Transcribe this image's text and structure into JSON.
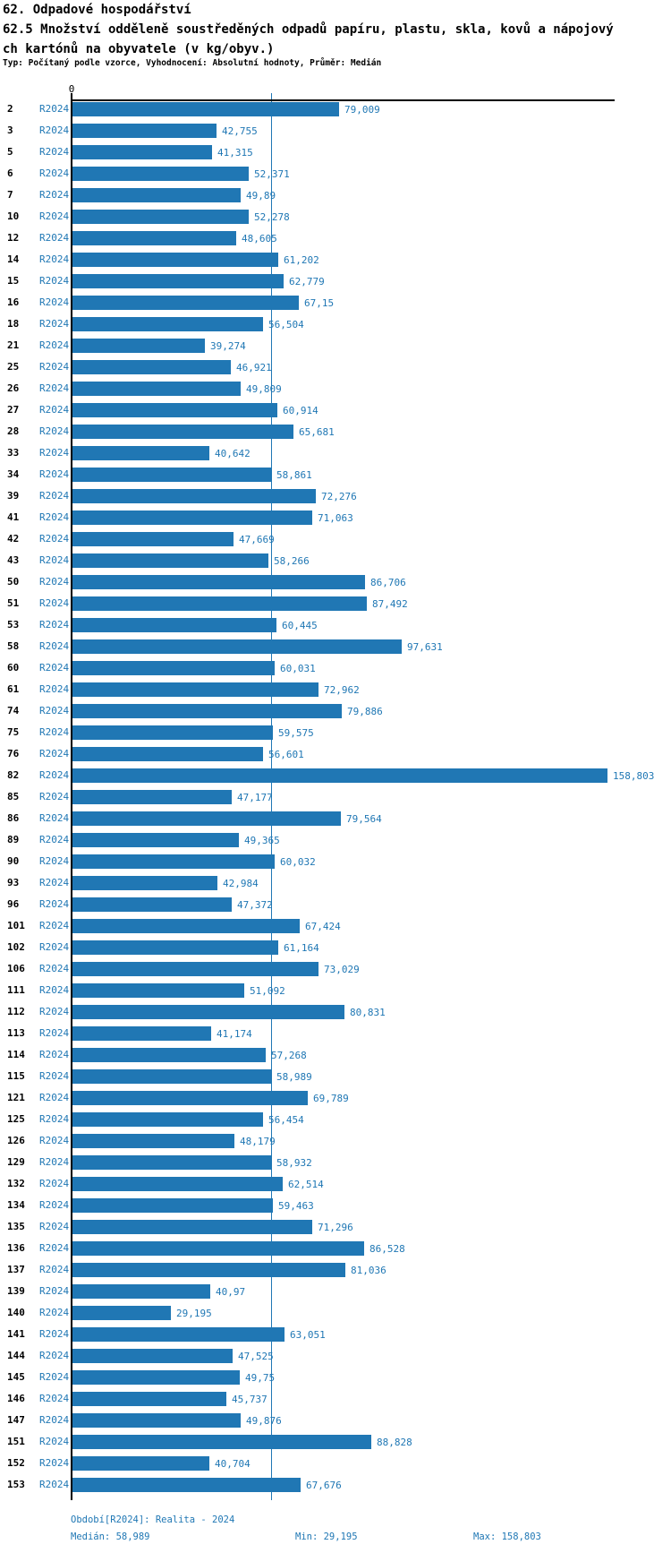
{
  "header": {
    "title": "62. Odpadové hospodářství",
    "subtitle_line1": "62.5 Množství odděleně soustředěných odpadů papíru, plastu, skla, kovů a nápojový",
    "subtitle_line2": "ch kartónů na obyvatele (v kg/obyv.)",
    "meta": "Typ: Počítaný podle vzorce, Vyhodnocení: Absolutní hodnoty, Průměr: Medián"
  },
  "chart_data": {
    "type": "bar",
    "orientation": "horizontal",
    "title": "62.5 Množství odděleně soustředěných odpadů papíru, plastu, skla, kovů a nápojových kartónů na obyvatele (v kg/obyv.)",
    "axis_zero_label": "0",
    "series_label": "R2024",
    "xlim": [
      0,
      158.803
    ],
    "grid": false,
    "median_value": 58.989,
    "bar_color": "#2077b4",
    "text_color": "#1f77b4",
    "category_color": "#000000",
    "categories": [
      "2",
      "3",
      "5",
      "6",
      "7",
      "10",
      "12",
      "14",
      "15",
      "16",
      "18",
      "21",
      "25",
      "26",
      "27",
      "28",
      "33",
      "34",
      "39",
      "41",
      "42",
      "43",
      "50",
      "51",
      "53",
      "58",
      "60",
      "61",
      "74",
      "75",
      "76",
      "82",
      "85",
      "86",
      "89",
      "90",
      "93",
      "96",
      "101",
      "102",
      "106",
      "111",
      "112",
      "113",
      "114",
      "115",
      "121",
      "125",
      "126",
      "129",
      "132",
      "134",
      "135",
      "136",
      "137",
      "139",
      "140",
      "141",
      "144",
      "145",
      "146",
      "147",
      "151",
      "152",
      "153"
    ],
    "values": [
      79.009,
      42.755,
      41.315,
      52.371,
      49.89,
      52.278,
      48.605,
      61.202,
      62.779,
      67.15,
      56.504,
      39.274,
      46.921,
      49.809,
      60.914,
      65.681,
      40.642,
      58.861,
      72.276,
      71.063,
      47.669,
      58.266,
      86.706,
      87.492,
      60.445,
      97.631,
      60.031,
      72.962,
      79.886,
      59.575,
      56.601,
      158.803,
      47.177,
      79.564,
      49.365,
      60.032,
      42.984,
      47.372,
      67.424,
      61.164,
      73.029,
      51.092,
      80.831,
      41.174,
      57.268,
      58.989,
      69.789,
      56.454,
      48.179,
      58.932,
      62.514,
      59.463,
      71.296,
      86.528,
      81.036,
      40.97,
      29.195,
      63.051,
      47.525,
      49.75,
      45.737,
      49.876,
      88.828,
      40.704,
      67.676
    ],
    "value_labels": [
      "79,009",
      "42,755",
      "41,315",
      "52,371",
      "49,89",
      "52,278",
      "48,605",
      "61,202",
      "62,779",
      "67,15",
      "56,504",
      "39,274",
      "46,921",
      "49,809",
      "60,914",
      "65,681",
      "40,642",
      "58,861",
      "72,276",
      "71,063",
      "47,669",
      "58,266",
      "86,706",
      "87,492",
      "60,445",
      "97,631",
      "60,031",
      "72,962",
      "79,886",
      "59,575",
      "56,601",
      "158,803",
      "47,177",
      "79,564",
      "49,365",
      "60,032",
      "42,984",
      "47,372",
      "67,424",
      "61,164",
      "73,029",
      "51,092",
      "80,831",
      "41,174",
      "57,268",
      "58,989",
      "69,789",
      "56,454",
      "48,179",
      "58,932",
      "62,514",
      "59,463",
      "71,296",
      "86,528",
      "81,036",
      "40,97",
      "29,195",
      "63,051",
      "47,525",
      "49,75",
      "45,737",
      "49,876",
      "88,828",
      "40,704",
      "67,676"
    ]
  },
  "footer": {
    "period": "Období[R2024]: Realita - 2024",
    "median": "Medián: 58,989",
    "min": "Min: 29,195",
    "max": "Max: 158,803"
  }
}
